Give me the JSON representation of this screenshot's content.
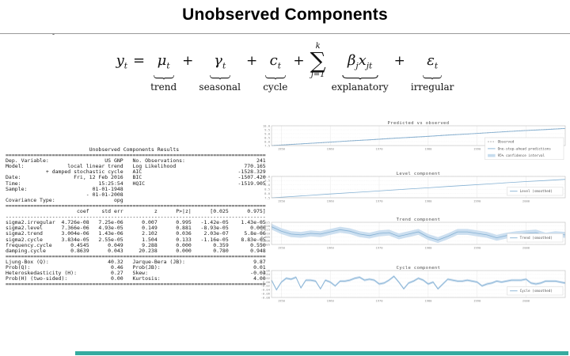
{
  "slide": {
    "title": "Unobserved Components",
    "stray_mark": "-",
    "accent_bar_color": "#35ab9f"
  },
  "equation": {
    "lhs": "y",
    "lhs_sub": "t",
    "equals": "=",
    "plus": "+",
    "terms": [
      {
        "symbol": "μ",
        "sub": "t",
        "label": "trend"
      },
      {
        "symbol": "γ",
        "sub": "t",
        "label": "seasonal"
      },
      {
        "symbol": "c",
        "sub": "t",
        "label": "cycle"
      }
    ],
    "sum": {
      "upper": "k",
      "symbol": "∑",
      "lower": "j=1"
    },
    "explanatory": {
      "beta": "β",
      "beta_sub": "j",
      "x": "x",
      "x_sub": "jt",
      "label": "explanatory"
    },
    "irregular": {
      "symbol": "ε",
      "sub": "t",
      "label": "irregular"
    }
  },
  "results_table": {
    "lines": [
      "                           Unobserved Components Results",
      "====================================================================================",
      "Dep. Variable:                  US GNP   No. Observations:                       241",
      "Model:              local linear trend   Log Likelihood                      770.165",
      "             + damped stochastic cycle   AIC                               -1528.329",
      "Date:                 Fri, 12 Feb 2016   BIC                               -1507.420",
      "Time:                         15:25:54   HQIC                              -1519.905",
      "Sample:                     01-01-1948",
      "                          - 01-01-2008",
      "Covariance Type:                   opg",
      "====================================================================================",
      "                       coef    std err          z      P>|z|      [0.025      0.975]",
      "------------------------------------------------------------------------------------",
      "sigma2.irregular  4.726e-08   7.25e-06      0.007      0.995   -1.42e-05    1.43e-05",
      "sigma2.level      7.366e-06   4.93e-05      0.149      0.881   -8.93e-05       0.000",
      "sigma2.trend      3.004e-06   1.43e-06      2.102      0.036    2.03e-07     5.8e-06",
      "sigma2.cycle      3.834e-05   2.55e-05      1.504      0.133   -1.16e-05    8.83e-05",
      "frequency.cycle      0.4545      0.049      9.288      0.000       0.359       0.550",
      "damping.cycle        0.8639      0.043     20.238      0.000       0.780       0.948",
      "====================================================================================",
      "Ljung-Box (Q):                   40.32   Jarque-Bera (JB):                      9.87",
      "Prob(Q):                          0.46   Prob(JB):                              0.01",
      "Heteroskedasticity (H):           0.27   Skew:                                 -0.04",
      "Prob(H) (two-sided):              0.00   Kurtosis:                              4.00",
      "===================================================================================="
    ]
  },
  "chart_data": [
    {
      "type": "line",
      "title": "Predicted vs observed",
      "xlabel": "",
      "ylabel": "",
      "xlim": [
        1948,
        2008
      ],
      "ylim": [
        7.5,
        10.0
      ],
      "xticks": [
        1950,
        1960,
        1970,
        1980,
        1990,
        2000
      ],
      "xtick_labels": [
        "1950",
        "1960",
        "1970",
        "1980",
        "1990",
        "2000"
      ],
      "yticks": [
        7.5,
        8.0,
        8.5,
        9.0,
        9.5,
        10.0
      ],
      "ytick_labels": [
        "7.5",
        "8.0",
        "8.5",
        "9.0",
        "9.5",
        "10.0"
      ],
      "grid": true,
      "legend_pos": "right",
      "series": [
        {
          "name": "95% confidence interval",
          "style": "band",
          "color": "#c6dcee",
          "around": 2,
          "half": 0.05,
          "legend": true,
          "legend_index": 2
        },
        {
          "name": "Observed",
          "style": "dashed",
          "color": "#9a9a9a",
          "legend": true,
          "legend_index": 0,
          "values": [
            7.5,
            7.66,
            7.78,
            7.91,
            8.11,
            8.21,
            8.4,
            8.52,
            8.65,
            8.84,
            8.95,
            9.12,
            9.27,
            9.41,
            9.54,
            9.67
          ]
        },
        {
          "name": "One-step-ahead predictions",
          "style": "solid",
          "color": "#85b1d3",
          "legend": true,
          "legend_index": 1,
          "values": [
            7.5,
            7.64,
            7.79,
            7.94,
            8.09,
            8.23,
            8.38,
            8.53,
            8.67,
            8.82,
            8.96,
            9.11,
            9.26,
            9.4,
            9.52,
            9.66
          ]
        }
      ]
    },
    {
      "type": "line",
      "title": "Level component",
      "xlabel": "",
      "ylabel": "",
      "xlim": [
        1948,
        2008
      ],
      "ylim": [
        7.5,
        10.0
      ],
      "xticks": [
        1950,
        1960,
        1970,
        1980,
        1990,
        2000
      ],
      "xtick_labels": [
        "1950",
        "1960",
        "1970",
        "1980",
        "1990",
        "2000"
      ],
      "yticks": [
        7.5,
        8.0,
        8.5,
        9.0,
        9.5,
        10.0
      ],
      "ytick_labels": [
        "7.5",
        "8.0",
        "8.5",
        "9.0",
        "9.5",
        "10.0"
      ],
      "grid": true,
      "legend_pos": "bottom-right",
      "series": [
        {
          "name": "Level (smoothed)",
          "style": "solid",
          "color": "#85b1d3",
          "legend": true,
          "legend_index": 0,
          "values": [
            7.5,
            7.64,
            7.79,
            7.94,
            8.09,
            8.23,
            8.38,
            8.53,
            8.67,
            8.82,
            8.96,
            9.11,
            9.26,
            9.4,
            9.52,
            9.66
          ]
        }
      ]
    },
    {
      "type": "line",
      "title": "Trend component",
      "xlabel": "",
      "ylabel": "",
      "xlim": [
        1948,
        2008
      ],
      "ylim": [
        -0.005,
        0.025
      ],
      "xticks": [
        1950,
        1960,
        1970,
        1980,
        1990,
        2000
      ],
      "xtick_labels": [
        "1950",
        "1960",
        "1970",
        "1980",
        "1990",
        "2000"
      ],
      "yticks": [
        -0.005,
        0.0,
        0.005,
        0.01,
        0.015,
        0.02,
        0.025
      ],
      "ytick_labels": [
        "-0.005",
        "0.000",
        "0.005",
        "0.010",
        "0.015",
        "0.020",
        "0.025"
      ],
      "grid": true,
      "legend_pos": "bottom-right",
      "series": [
        {
          "name": "confidence band",
          "style": "band",
          "color": "#c6dcee",
          "around": 1,
          "half": 0.004,
          "legend": false,
          "legend_index": 1
        },
        {
          "name": "Trend (smoothed)",
          "style": "solid",
          "color": "#85b1d3",
          "legend": true,
          "legend_index": 0,
          "values": [
            0.019,
            0.013,
            0.009,
            0.008,
            0.01,
            0.009,
            0.012,
            0.015,
            0.013,
            0.009,
            0.007,
            0.01,
            0.011,
            0.006,
            0.009,
            0.012,
            0.005,
            0.001,
            0.006,
            0.012,
            0.012,
            0.01,
            0.008,
            0.004,
            0.007,
            0.009,
            0.01,
            0.011,
            0.007,
            0.009,
            0.008
          ]
        }
      ]
    },
    {
      "type": "line",
      "title": "Cycle component",
      "xlabel": "",
      "ylabel": "",
      "xlim": [
        1948,
        2008
      ],
      "ylim": [
        -0.08,
        0.06
      ],
      "xticks": [
        1950,
        1960,
        1970,
        1980,
        1990,
        2000
      ],
      "xtick_labels": [
        "1950",
        "1960",
        "1970",
        "1980",
        "1990",
        "2000"
      ],
      "yticks": [
        -0.08,
        -0.06,
        -0.04,
        -0.02,
        0.0,
        0.02,
        0.04,
        0.06
      ],
      "ytick_labels": [
        "-0.08",
        "-0.06",
        "-0.04",
        "-0.02",
        "0.00",
        "0.02",
        "0.04",
        "0.06"
      ],
      "grid": true,
      "legend_pos": "bottom-right",
      "series": [
        {
          "name": "confidence band",
          "style": "band",
          "color": "#c6dcee",
          "around": 1,
          "half": 0.006,
          "legend": false,
          "legend_index": 1
        },
        {
          "name": "Cycle (smoothed)",
          "style": "solid",
          "color": "#85b1d3",
          "legend": true,
          "legend_index": 0,
          "values": [
            0.01,
            -0.04,
            0.0,
            0.02,
            0.015,
            0.025,
            -0.03,
            0.01,
            0.01,
            0.005,
            -0.035,
            0.01,
            0.0,
            -0.02,
            0.005,
            0.005,
            0.01,
            0.02,
            0.025,
            0.01,
            0.015,
            0.01,
            -0.01,
            -0.005,
            0.01,
            0.03,
            0.0,
            -0.035,
            -0.005,
            0.005,
            0.02,
            0.01,
            -0.01,
            0.0,
            -0.035,
            -0.01,
            0.015,
            0.01,
            0.005,
            0.005,
            0.01,
            0.005,
            0.0,
            -0.02,
            -0.01,
            -0.005,
            0.005,
            0.0,
            0.005,
            0.01,
            0.01,
            0.01,
            0.015,
            -0.005,
            -0.01,
            -0.005,
            0.005,
            0.005,
            0.005,
            0.0,
            -0.005
          ]
        }
      ]
    }
  ]
}
